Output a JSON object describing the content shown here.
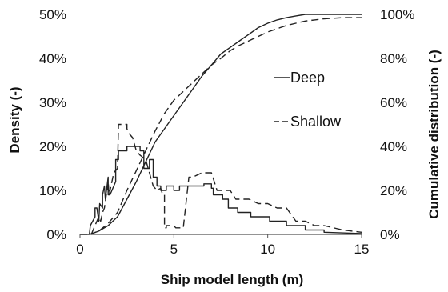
{
  "chart_data": {
    "type": "line",
    "xlabel": "Ship model length (m)",
    "ylabel_left": "Density (-)",
    "ylabel_right": "Cumulative distribution (-)",
    "xlim": [
      0,
      15
    ],
    "ylim_left": [
      0,
      0.5
    ],
    "ylim_right": [
      0,
      1
    ],
    "x_ticks": [
      0,
      5,
      10,
      15
    ],
    "y_left_ticks": [
      "0%",
      "10%",
      "20%",
      "30%",
      "40%",
      "50%"
    ],
    "y_right_ticks": [
      "0%",
      "20%",
      "40%",
      "60%",
      "80%",
      "100%"
    ],
    "grid": false,
    "legend_position": "right-center",
    "series": [
      {
        "name": "Deep",
        "axis": "left",
        "dash": "solid",
        "x": [
          0,
          0.5,
          0.55,
          0.8,
          0.8,
          0.9,
          1.0,
          1.05,
          1.2,
          1.2,
          1.3,
          1.35,
          1.5,
          1.5,
          1.6,
          1.7,
          1.9,
          1.9,
          2.05,
          2.05,
          2.5,
          2.5,
          3.2,
          3.2,
          3.4,
          3.4,
          3.7,
          3.7,
          3.9,
          3.9,
          4.1,
          4.1,
          4.3,
          4.3,
          4.6,
          4.6,
          5.0,
          5.0,
          5.3,
          5.3,
          6.1,
          6.1,
          6.6,
          6.6,
          7.0,
          7.0,
          7.1,
          7.1,
          7.6,
          7.6,
          7.9,
          7.9,
          8.4,
          8.4,
          9.1,
          9.1,
          10.1,
          10.1,
          11.0,
          11.0,
          12.0,
          12.0,
          13.0,
          13.0,
          15.0
        ],
        "y": [
          0,
          0,
          0.02,
          0.04,
          0.06,
          0.06,
          0.03,
          0.07,
          0.06,
          0.09,
          0.11,
          0.08,
          0.13,
          0.09,
          0.09,
          0.1,
          0.12,
          0.17,
          0.17,
          0.19,
          0.19,
          0.2,
          0.2,
          0.19,
          0.19,
          0.15,
          0.15,
          0.17,
          0.17,
          0.13,
          0.13,
          0.11,
          0.11,
          0.1,
          0.1,
          0.11,
          0.11,
          0.1,
          0.1,
          0.11,
          0.11,
          0.11,
          0.11,
          0.115,
          0.115,
          0.105,
          0.105,
          0.09,
          0.09,
          0.08,
          0.08,
          0.06,
          0.06,
          0.05,
          0.05,
          0.04,
          0.04,
          0.03,
          0.03,
          0.02,
          0.02,
          0.01,
          0.01,
          0.005,
          0.002
        ]
      },
      {
        "name": "Shallow",
        "axis": "left",
        "dash": "dashed",
        "x": [
          0,
          0.6,
          0.7,
          1.0,
          1.1,
          1.2,
          1.3,
          1.4,
          1.5,
          1.55,
          1.7,
          1.8,
          2.0,
          2.05,
          2.5,
          2.5,
          2.6,
          2.8,
          3.0,
          3.2,
          3.5,
          3.7,
          3.9,
          4.1,
          4.3,
          4.4,
          4.5,
          4.5,
          4.6,
          4.6,
          5.0,
          5.1,
          5.5,
          5.8,
          6.0,
          6.5,
          7.0,
          7.3,
          8.0,
          8.3,
          9.0,
          9.5,
          10.0,
          10.5,
          11.0,
          11.5,
          12.0,
          12.5,
          13.0,
          14.0,
          15.0
        ],
        "y": [
          0,
          0,
          0.01,
          0.04,
          0.03,
          0.05,
          0.06,
          0.09,
          0.12,
          0.09,
          0.12,
          0.14,
          0.15,
          0.25,
          0.25,
          0.24,
          0.23,
          0.22,
          0.19,
          0.18,
          0.17,
          0.14,
          0.11,
          0.1,
          0.105,
          0.09,
          0.09,
          0.015,
          0.015,
          0.02,
          0.02,
          0.015,
          0.015,
          0.13,
          0.13,
          0.14,
          0.14,
          0.1,
          0.1,
          0.08,
          0.08,
          0.07,
          0.07,
          0.06,
          0.06,
          0.03,
          0.03,
          0.02,
          0.02,
          0.01,
          0.005
        ]
      },
      {
        "name": "Deep",
        "axis": "right",
        "dash": "solid",
        "x": [
          0.5,
          1.0,
          1.5,
          2.0,
          2.5,
          3.0,
          3.5,
          4.0,
          4.5,
          5.0,
          5.5,
          6.0,
          6.5,
          7.0,
          7.5,
          8.0,
          8.5,
          9.0,
          9.5,
          10.0,
          10.5,
          11.0,
          11.5,
          12.0,
          12.5,
          13.0,
          14.0,
          15.0
        ],
        "y": [
          0,
          0.015,
          0.04,
          0.08,
          0.16,
          0.24,
          0.33,
          0.42,
          0.48,
          0.54,
          0.6,
          0.66,
          0.72,
          0.77,
          0.82,
          0.85,
          0.88,
          0.91,
          0.94,
          0.96,
          0.975,
          0.985,
          0.993,
          1.0,
          1.0,
          1.0,
          1.0,
          1.0
        ]
      },
      {
        "name": "Shallow",
        "axis": "right",
        "dash": "dashed",
        "x": [
          0.5,
          1.0,
          1.5,
          2.0,
          2.5,
          3.0,
          3.5,
          4.0,
          4.5,
          5.0,
          5.5,
          6.0,
          6.5,
          7.0,
          7.5,
          8.0,
          8.5,
          9.0,
          9.5,
          10.0,
          10.5,
          11.0,
          11.5,
          12.0,
          12.5,
          13.0,
          14.0,
          15.0
        ],
        "y": [
          0,
          0.015,
          0.05,
          0.1,
          0.2,
          0.29,
          0.38,
          0.47,
          0.55,
          0.61,
          0.65,
          0.69,
          0.73,
          0.77,
          0.8,
          0.835,
          0.86,
          0.88,
          0.9,
          0.92,
          0.935,
          0.95,
          0.96,
          0.97,
          0.975,
          0.98,
          0.985,
          0.985
        ]
      }
    ],
    "legend": [
      {
        "label": "Deep",
        "dash": "solid"
      },
      {
        "label": "Shallow",
        "dash": "dashed"
      }
    ]
  }
}
